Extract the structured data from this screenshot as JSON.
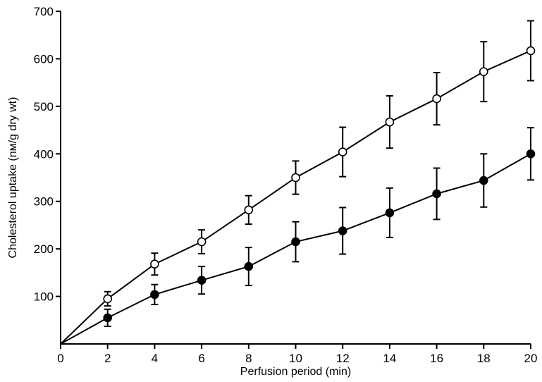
{
  "chart_data": {
    "type": "line",
    "xlabel": "Perfusion period (min)",
    "ylabel": "Cholesterol uptake (nм/g dry wt)",
    "xlim": [
      0,
      20
    ],
    "ylim": [
      0,
      700
    ],
    "x_ticks": [
      0,
      2,
      4,
      6,
      8,
      10,
      12,
      14,
      16,
      18,
      20
    ],
    "y_ticks": [
      100,
      200,
      300,
      400,
      500,
      600,
      700
    ],
    "grid": false,
    "series": [
      {
        "marker": "open-circle",
        "x": [
          0,
          2,
          4,
          6,
          8,
          10,
          12,
          14,
          16,
          18,
          20
        ],
        "y": [
          0,
          95,
          168,
          215,
          282,
          350,
          404,
          467,
          516,
          573,
          617
        ],
        "err": [
          0,
          15,
          23,
          25,
          30,
          35,
          52,
          55,
          55,
          63,
          63
        ]
      },
      {
        "marker": "filled-circle",
        "x": [
          0,
          2,
          4,
          6,
          8,
          10,
          12,
          14,
          16,
          18,
          20
        ],
        "y": [
          0,
          55,
          104,
          134,
          163,
          215,
          238,
          276,
          316,
          344,
          400
        ],
        "err": [
          0,
          18,
          21,
          29,
          40,
          42,
          49,
          52,
          54,
          56,
          55
        ]
      }
    ]
  }
}
